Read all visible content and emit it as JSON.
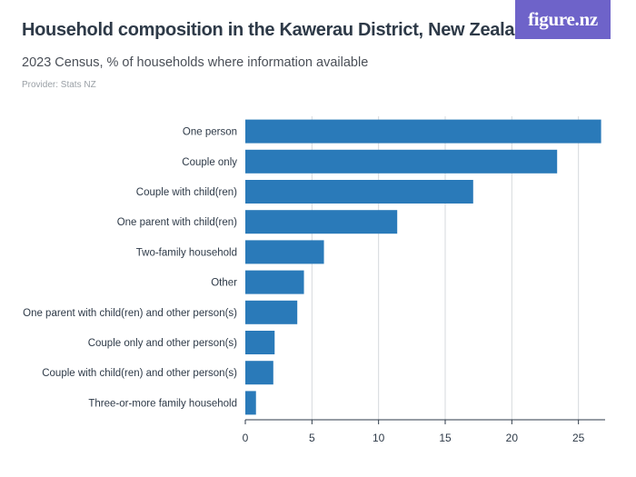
{
  "header": {
    "title": "Household composition in the Kawerau District, New Zealand",
    "subtitle": "2023 Census, % of households where information available",
    "provider": "Provider: Stats NZ",
    "logo_text": "figure.nz"
  },
  "colors": {
    "bar": "#2a7ab9",
    "logo_bg": "#6e63c9",
    "axis": "#2e3a48",
    "gridline": "#d6d9dd"
  },
  "chart_data": {
    "type": "bar",
    "orientation": "horizontal",
    "title": "Household composition in the Kawerau District, New Zealand",
    "subtitle": "2023 Census, % of households where information available",
    "categories": [
      "One person",
      "Couple only",
      "Couple with child(ren)",
      "One parent with child(ren)",
      "Two-family household",
      "Other",
      "One parent with child(ren) and other person(s)",
      "Couple only and other person(s)",
      "Couple with child(ren) and other person(s)",
      "Three-or-more family household"
    ],
    "values": [
      26.7,
      23.4,
      17.1,
      11.4,
      5.9,
      4.4,
      3.9,
      2.2,
      2.1,
      0.8
    ],
    "xlabel": "",
    "ylabel": "",
    "xlim": [
      0,
      27
    ],
    "xticks": [
      0,
      5,
      10,
      15,
      20,
      25
    ],
    "grid": true,
    "legend": "none"
  }
}
